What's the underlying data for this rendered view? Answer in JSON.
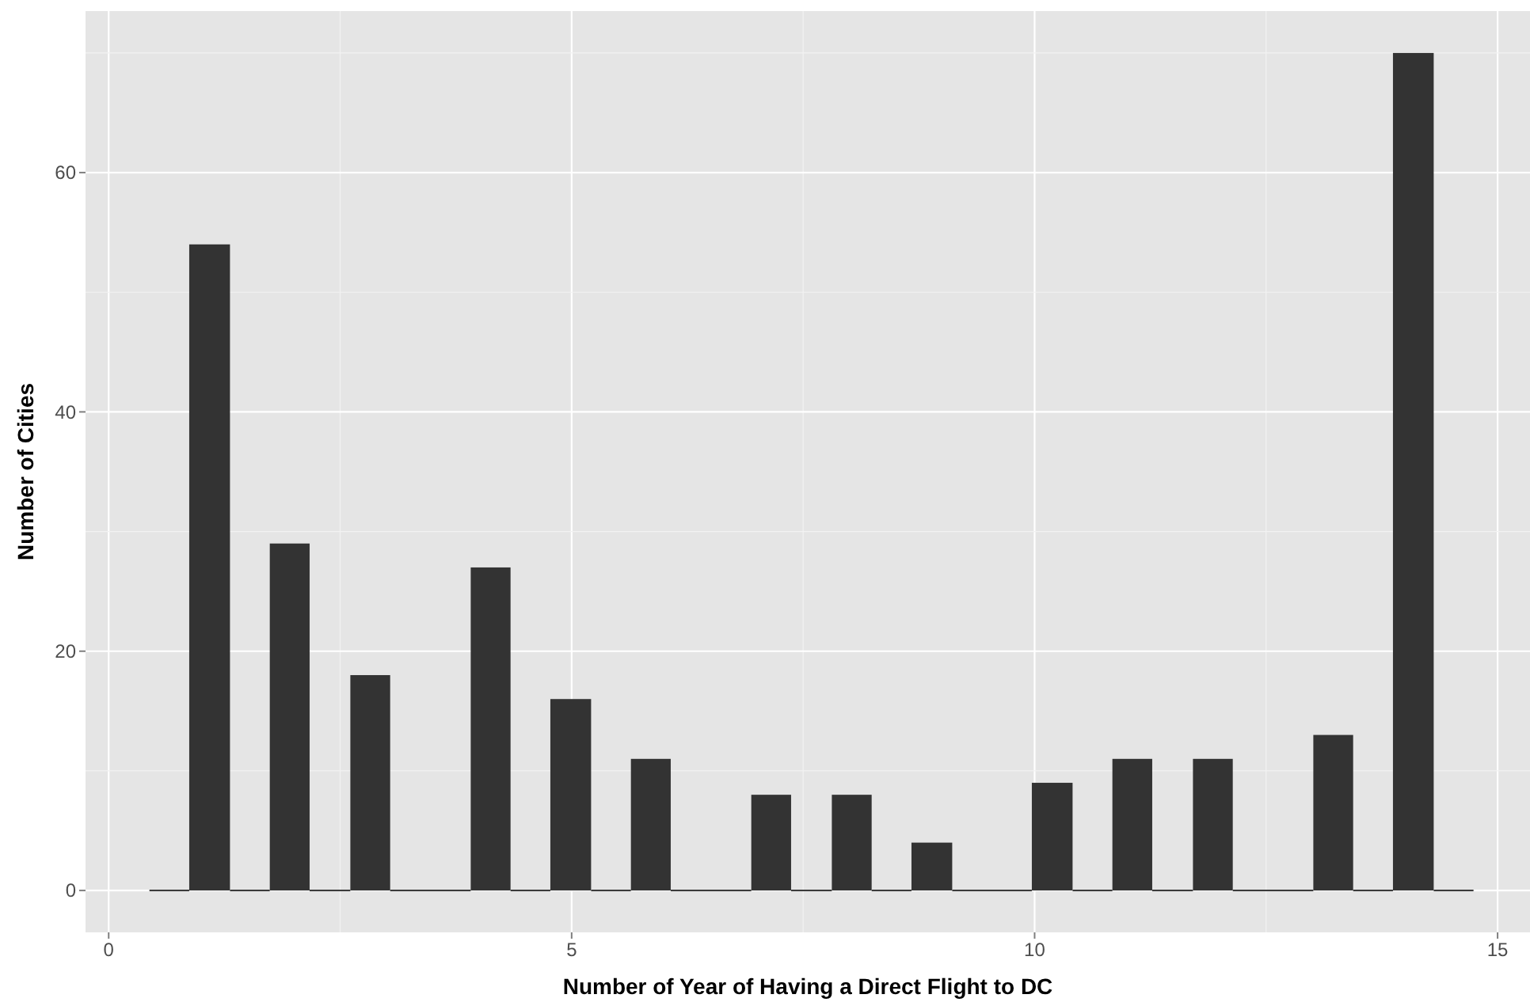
{
  "chart_data": {
    "type": "histogram",
    "xlabel": "Number of Year of Having a Direct Flight to DC",
    "ylabel": "Number of Cities",
    "bins": [
      0.44,
      0.87,
      1.31,
      1.74,
      2.17,
      2.61,
      3.04,
      3.91,
      4.34,
      4.77,
      5.21,
      5.64,
      6.07,
      6.94,
      7.37,
      7.81,
      8.24,
      8.67,
      9.11,
      9.97,
      10.41,
      10.84,
      11.27,
      11.71,
      12.14,
      13.01,
      13.44,
      13.87,
      14.31,
      14.74
    ],
    "values": [
      0,
      54,
      0,
      29,
      0,
      18,
      0,
      27,
      0,
      16,
      0,
      11,
      0,
      8,
      0,
      8,
      0,
      4,
      0,
      9,
      0,
      11,
      0,
      11,
      0,
      13,
      0,
      70,
      0
    ],
    "color": "#333333",
    "xlim": [
      -0.25,
      15.35
    ],
    "xticks": [
      0,
      {
        "value": 2.5,
        "label": null
      },
      5,
      {
        "value": 7.5,
        "label": null
      },
      10,
      {
        "value": 12.5,
        "label": null
      },
      15
    ],
    "ylim": [
      -3.5,
      73.5
    ],
    "yticks": [
      0,
      {
        "value": 10,
        "label": null
      },
      20,
      {
        "value": 30,
        "label": null
      },
      40,
      {
        "value": 50,
        "label": null
      },
      60,
      {
        "value": 70,
        "label": null
      }
    ],
    "grid": true
  }
}
